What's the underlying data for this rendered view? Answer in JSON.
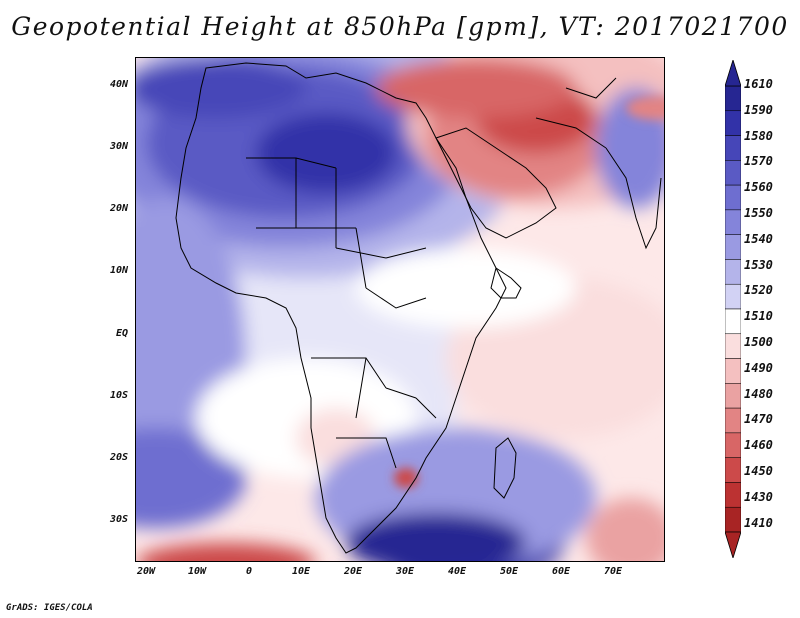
{
  "title": "Geopotential Height at 850hPa [gpm], VT: 2017021700",
  "credit": "GrADS: IGES/COLA",
  "map": {
    "variable": "Geopotential Height",
    "level": "850hPa",
    "units": "gpm",
    "valid_time": "2017021700",
    "lon_range": [
      -23,
      80
    ],
    "lat_range": [
      -37,
      45
    ],
    "y_ticks": [
      "40N",
      "30N",
      "20N",
      "10N",
      "EQ",
      "10S",
      "20S",
      "30S"
    ],
    "x_ticks": [
      "20W",
      "10W",
      "0",
      "10E",
      "20E",
      "30E",
      "40E",
      "50E",
      "60E",
      "70E"
    ]
  },
  "colorbar": {
    "labels": [
      "1610",
      "1590",
      "1580",
      "1570",
      "1560",
      "1550",
      "1540",
      "1530",
      "1520",
      "1510",
      "1500",
      "1490",
      "1480",
      "1470",
      "1460",
      "1450",
      "1430",
      "1410"
    ],
    "colors": [
      "#262692",
      "#3232a8",
      "#4646b8",
      "#5a5ac4",
      "#6e6ed0",
      "#8484da",
      "#9a9ae2",
      "#b4b4ea",
      "#d2d2f4",
      "#ffffff",
      "#fadede",
      "#f4c0c0",
      "#eaa2a2",
      "#e28484",
      "#d86666",
      "#cc4a4a",
      "#bc3232",
      "#a82424"
    ]
  }
}
